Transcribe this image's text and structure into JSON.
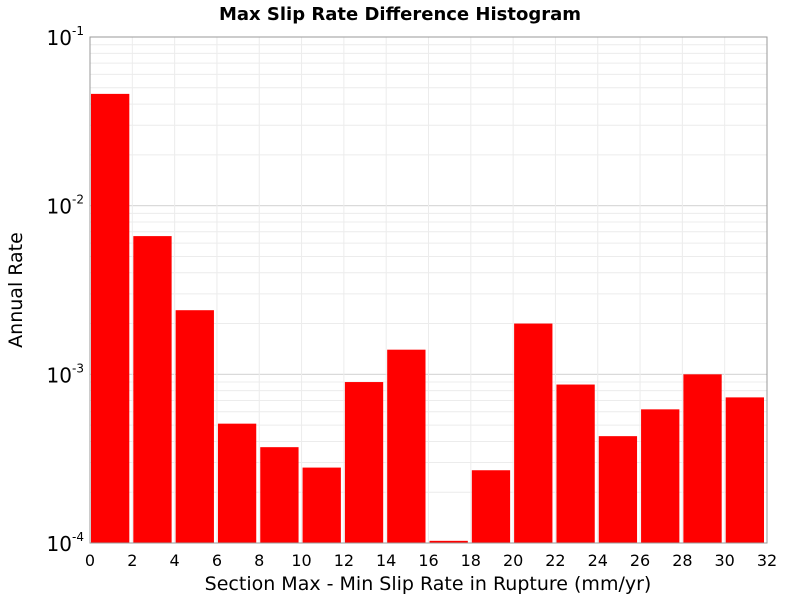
{
  "chart_data": {
    "type": "bar",
    "title": "Max Slip Rate Difference Histogram",
    "xlabel": "Section Max - Min Slip Rate in Rupture (mm/yr)",
    "ylabel": "Annual Rate",
    "x_bins": [
      [
        0,
        2
      ],
      [
        2,
        4
      ],
      [
        4,
        6
      ],
      [
        6,
        8
      ],
      [
        8,
        10
      ],
      [
        10,
        12
      ],
      [
        12,
        14
      ],
      [
        14,
        16
      ],
      [
        16,
        18
      ],
      [
        18,
        20
      ],
      [
        20,
        22
      ],
      [
        22,
        24
      ],
      [
        24,
        26
      ],
      [
        26,
        28
      ],
      [
        28,
        30
      ],
      [
        30,
        32
      ]
    ],
    "values": [
      0.046,
      0.0066,
      0.0024,
      0.00051,
      0.00037,
      0.00028,
      0.0009,
      0.0014,
      0.000103,
      0.00027,
      0.002,
      0.00087,
      0.00043,
      0.00062,
      0.001,
      0.00073
    ],
    "xlim": [
      0,
      32
    ],
    "ylim": [
      0.0001,
      0.1
    ],
    "yscale": "log",
    "xticks": [
      "0",
      "2",
      "4",
      "6",
      "8",
      "10",
      "12",
      "14",
      "16",
      "18",
      "20",
      "22",
      "24",
      "26",
      "28",
      "30",
      "32"
    ],
    "yticks": [
      {
        "base": "10",
        "exp": "-4",
        "value": 0.0001
      },
      {
        "base": "10",
        "exp": "-3",
        "value": 0.001
      },
      {
        "base": "10",
        "exp": "-2",
        "value": 0.01
      },
      {
        "base": "10",
        "exp": "-1",
        "value": 0.1
      }
    ],
    "grid": true,
    "bar_color": "#ff0000"
  }
}
